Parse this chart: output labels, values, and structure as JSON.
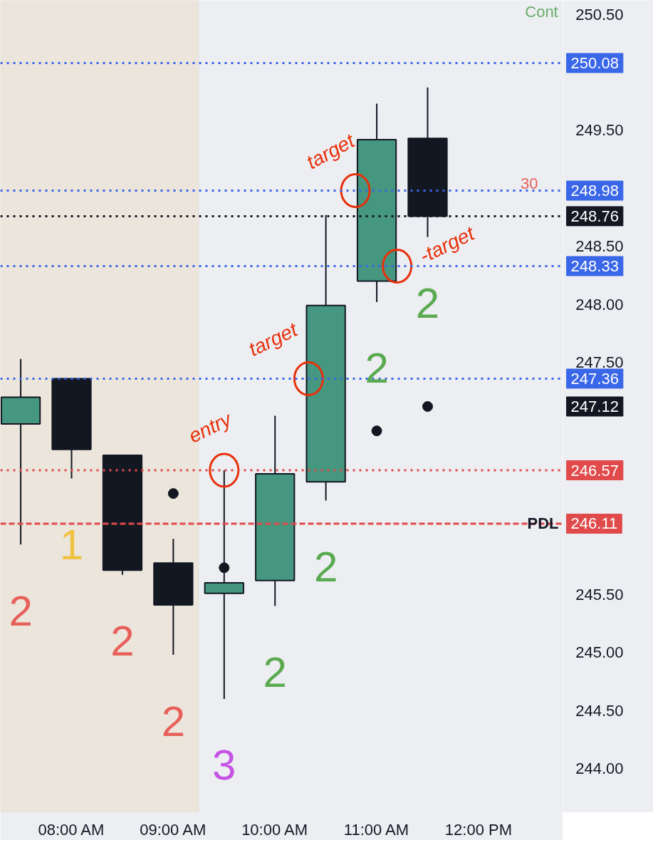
{
  "chart_data": {
    "type": "candlestick",
    "x": [
      7.5,
      8,
      8.5,
      9,
      9.5,
      10,
      10.5,
      11,
      11.5
    ],
    "ohlc": [
      [
        246.97,
        247.53,
        245.93,
        247.2
      ],
      [
        247.36,
        247.36,
        246.5,
        246.75
      ],
      [
        246.7,
        246.7,
        245.67,
        245.71
      ],
      [
        245.77,
        245.98,
        244.98,
        245.41
      ],
      [
        245.51,
        246.57,
        244.6,
        245.6
      ],
      [
        245.62,
        247.04,
        245.4,
        246.54
      ],
      [
        246.47,
        248.77,
        246.31,
        247.99
      ],
      [
        248.2,
        249.73,
        248.02,
        249.42
      ],
      [
        249.43,
        249.87,
        248.58,
        248.76
      ]
    ],
    "colors": [
      "#45977f",
      "#131722",
      "#131722",
      "#131722",
      "#45977f",
      "#45977f",
      "#45977f",
      "#45977f",
      "#131722"
    ],
    "series": [
      {
        "type": "scatter",
        "x": [
          9,
          9.5,
          11,
          11.5
        ],
        "values": [
          246.37,
          245.73,
          246.91,
          247.12
        ],
        "color": "#131722",
        "marker": "circle"
      }
    ],
    "xlim": [
      7.3,
      12.83
    ],
    "ylim": [
      243.62,
      250.62
    ],
    "xticks": [
      {
        "value": 8,
        "label": "08:00 AM"
      },
      {
        "value": 9,
        "label": "09:00 AM"
      },
      {
        "value": 10,
        "label": "10:00 AM"
      },
      {
        "value": 11,
        "label": "11:00 AM"
      },
      {
        "value": 12,
        "label": "12:00 PM"
      }
    ],
    "yticks": [
      {
        "value": 244,
        "label": "244.00"
      },
      {
        "value": 244.5,
        "label": "244.50"
      },
      {
        "value": 245,
        "label": "245.00"
      },
      {
        "value": 245.5,
        "label": "245.50"
      },
      {
        "value": 247.5,
        "label": "247.50"
      },
      {
        "value": 248,
        "label": "248.00"
      },
      {
        "value": 248.5,
        "label": "248.50"
      },
      {
        "value": 249.5,
        "label": "249.50"
      },
      {
        "value": 250.5,
        "label": "250.50"
      }
    ],
    "ref_lines": [
      {
        "axis": "y",
        "value": 250.08,
        "color": "#3a66e8",
        "line_style": "dotted",
        "label": "250.08"
      },
      {
        "axis": "y",
        "value": 248.98,
        "color": "#3a66e8",
        "line_style": "dotted",
        "label": "248.98"
      },
      {
        "axis": "y",
        "value": 248.76,
        "color": "#131722",
        "line_style": "dotted",
        "label": "248.76"
      },
      {
        "axis": "y",
        "value": 248.33,
        "color": "#3a66e8",
        "line_style": "dotted",
        "label": "248.33"
      },
      {
        "axis": "y",
        "value": 247.36,
        "color": "#3a66e8",
        "line_style": "dotted",
        "label": "247.36"
      },
      {
        "axis": "y",
        "value": 246.57,
        "color": "#e04a4a",
        "line_style": "dotted",
        "label": "246.57"
      },
      {
        "axis": "y",
        "value": 246.11,
        "color": "#e04a4a",
        "line_style": "dashed",
        "label": "246.11"
      }
    ],
    "bands": [
      {
        "axis": "x",
        "from": 7.3,
        "to": 9.25,
        "color": "#ebe5dc"
      }
    ],
    "annotations": [
      "2",
      "1",
      "2",
      "2",
      "3",
      "2",
      "2",
      "2",
      "2",
      "30",
      "Cont",
      "247.12",
      {
        "text": "PDL",
        "y": 246.11
      },
      {
        "text": "target",
        "x": 10.79,
        "y": 248.98
      },
      {
        "text": "-target",
        "x": 11.2,
        "y": 248.33
      },
      {
        "text": "target",
        "x": 10.33,
        "y": 247.36
      },
      {
        "text": "entry",
        "x": 9.5,
        "y": 246.57
      }
    ]
  }
}
